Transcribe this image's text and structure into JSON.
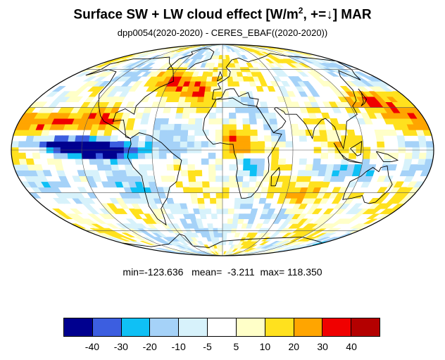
{
  "title": {
    "main": "Surface SW + LW cloud effect [W/m",
    "sup": "2",
    "rest": ", +=↓]  MAR"
  },
  "subtitle": "dpp0054(2020-2020) - CERES_EBAF((2020-2020))",
  "stats": {
    "text": "min=-123.636   mean=  -3.211  max= 118.350",
    "min": -123.636,
    "mean": -3.211,
    "max": 118.35
  },
  "map": {
    "projection": "Mollweide",
    "grid": true,
    "ocean_color": "#ffffff"
  },
  "colorbar": {
    "colors": [
      "#00008f",
      "#3c5ee0",
      "#0fc0f5",
      "#a5d2f8",
      "#d7f2fb",
      "#ffffff",
      "#ffffc8",
      "#ffe11e",
      "#ffa500",
      "#f00000",
      "#b40000"
    ],
    "ticks": [
      "-40",
      "-30",
      "-20",
      "-10",
      "-5",
      "5",
      "10",
      "20",
      "30",
      "40"
    ]
  }
}
